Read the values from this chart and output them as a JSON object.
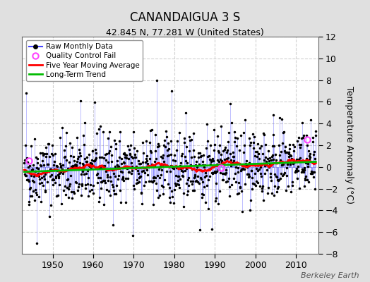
{
  "title": "CANANDAIGUA 3 S",
  "subtitle": "42.845 N, 77.281 W (United States)",
  "ylabel": "Temperature Anomaly (°C)",
  "watermark": "Berkeley Earth",
  "ylim": [
    -8,
    12
  ],
  "yticks": [
    -8,
    -6,
    -4,
    -2,
    0,
    2,
    4,
    6,
    8,
    10,
    12
  ],
  "xlim": [
    1942.5,
    2015.5
  ],
  "xticks": [
    1950,
    1960,
    1970,
    1980,
    1990,
    2000,
    2010
  ],
  "start_year": 1943,
  "end_year": 2014,
  "background_color": "#e0e0e0",
  "plot_bg_color": "#ffffff",
  "raw_line_color": "#4444ff",
  "raw_dot_color": "#000000",
  "moving_avg_color": "#ff0000",
  "trend_color": "#00bb00",
  "qc_fail_color": "#ff44ff",
  "seed": 42
}
